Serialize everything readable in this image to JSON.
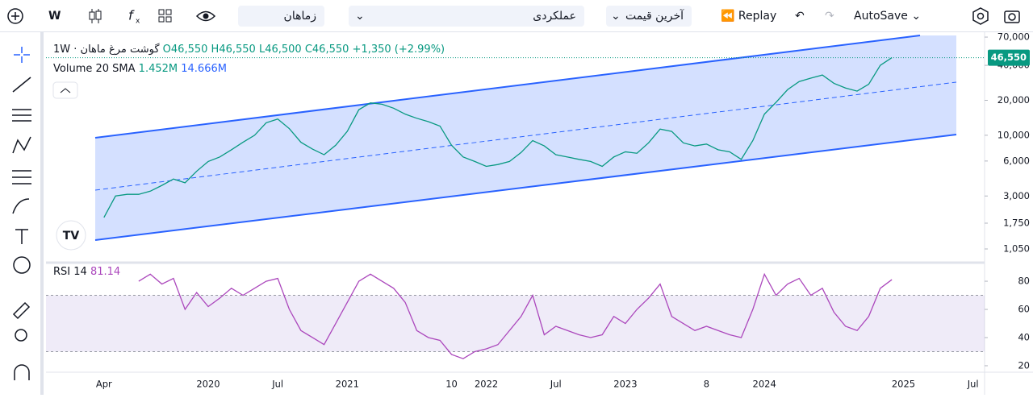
{
  "toolbar": {
    "interval": "W",
    "search": "زماهان",
    "symbol": "عملکردی",
    "price_type": "آخرین قیمت",
    "replay": "Replay",
    "autosave": "AutoSave"
  },
  "legend": {
    "title": "گوشت مرغ ماهان · 1W",
    "open": "O46,550",
    "high": "H46,550",
    "low": "L46,500",
    "close": "C46,550",
    "change": "+1,350 (+2.99%)",
    "volume_name": "Volume 20 SMA",
    "volume": "1.452M",
    "volume_sma": "14.666M",
    "rsi_name": "RSI 14",
    "rsi_value": "81.14"
  },
  "chart_data": [
    {
      "type": "line",
      "log": true,
      "color": "#089981",
      "x": [
        "2019-04",
        "2019-05",
        "2019-06",
        "2019-07",
        "2019-08",
        "2019-09",
        "2019-10",
        "2019-11",
        "2019-12",
        "2020-01",
        "2020-02",
        "2020-03",
        "2020-04",
        "2020-05",
        "2020-06",
        "2020-07",
        "2020-08",
        "2020-09",
        "2020-10",
        "2020-11",
        "2020-12",
        "2021-01",
        "2021-02",
        "2021-03",
        "2021-04",
        "2021-05",
        "2021-06",
        "2021-07",
        "2021-08",
        "2021-09",
        "2021-10",
        "2021-11",
        "2021-12",
        "2022-01",
        "2022-02",
        "2022-03",
        "2022-04",
        "2022-05",
        "2022-06",
        "2022-07",
        "2022-08",
        "2022-09",
        "2022-10",
        "2022-11",
        "2022-12",
        "2023-01",
        "2023-02",
        "2023-03",
        "2023-04",
        "2023-05",
        "2023-06",
        "2023-07",
        "2023-08",
        "2023-09",
        "2023-10",
        "2023-11",
        "2023-12",
        "2024-01",
        "2024-02",
        "2024-03",
        "2024-04",
        "2024-05",
        "2024-06",
        "2024-07",
        "2024-08",
        "2024-09",
        "2024-10",
        "2024-11",
        "2024-12"
      ],
      "values": [
        1960,
        3000,
        3100,
        3100,
        3300,
        3700,
        4200,
        3900,
        4900,
        5950,
        6500,
        7500,
        8700,
        10000,
        12800,
        13800,
        11400,
        8700,
        7600,
        6800,
        8200,
        10800,
        16600,
        19000,
        18500,
        17100,
        15200,
        14000,
        13100,
        12000,
        8200,
        6500,
        5950,
        5400,
        5600,
        5950,
        7100,
        9000,
        8100,
        6800,
        6500,
        6200,
        5950,
        5400,
        6500,
        7200,
        7000,
        8600,
        11300,
        10800,
        8600,
        8100,
        8400,
        7500,
        7200,
        6200,
        9000,
        15200,
        19200,
        24700,
        29000,
        31000,
        33000,
        28000,
        25500,
        24000,
        27500,
        40000,
        46550
      ],
      "xlim": [
        "2018-11",
        "2025-08"
      ],
      "xticks": [
        {
          "value": "2019-04",
          "label": "Apr"
        },
        {
          "value": "2020-01",
          "label": "2020"
        },
        {
          "value": "2020-07",
          "label": "Jul"
        },
        {
          "value": "2021-01",
          "label": "2021"
        },
        {
          "value": "2021-10",
          "label": "10"
        },
        {
          "value": "2022-01",
          "label": "2022"
        },
        {
          "value": "2022-07",
          "label": "Jul"
        },
        {
          "value": "2023-01",
          "label": "2023"
        },
        {
          "value": "2023-08",
          "label": "8"
        },
        {
          "value": "2024-01",
          "label": "2024"
        },
        {
          "value": "2025-01",
          "label": "2025"
        },
        {
          "value": "2025-07",
          "label": "Jul"
        }
      ],
      "ylim": [
        853,
        77100
      ],
      "yticks": [
        {
          "value": 1050,
          "label": "1,050"
        },
        {
          "value": 1750,
          "label": "1,750"
        },
        {
          "value": 3000,
          "label": "3,000"
        },
        {
          "value": 6000,
          "label": "6,000"
        },
        {
          "value": 10000,
          "label": "10,000"
        },
        {
          "value": 20000,
          "label": "20,000"
        },
        {
          "value": 40000,
          "label": "40,000"
        },
        {
          "value": 70000,
          "label": "70,000"
        }
      ],
      "last_price": {
        "value": 46550,
        "label": "46,550"
      }
    },
    {
      "type": "line",
      "color": "#ab47bc",
      "values": [
        null,
        null,
        null,
        80,
        85,
        78,
        82,
        60,
        72,
        62,
        68,
        75,
        70,
        75,
        80,
        82,
        60,
        45,
        40,
        35,
        50,
        65,
        80,
        85,
        80,
        75,
        65,
        45,
        40,
        38,
        28,
        25,
        30,
        32,
        35,
        45,
        55,
        70,
        42,
        48,
        45,
        42,
        40,
        42,
        55,
        50,
        60,
        68,
        78,
        55,
        50,
        45,
        48,
        45,
        42,
        40,
        60,
        85,
        70,
        78,
        82,
        70,
        75,
        58,
        48,
        45,
        55,
        75,
        81.14
      ],
      "ylim": [
        15.4,
        90.9
      ],
      "yticks": [
        20,
        40,
        60,
        80
      ],
      "band": [
        30,
        70
      ]
    }
  ]
}
